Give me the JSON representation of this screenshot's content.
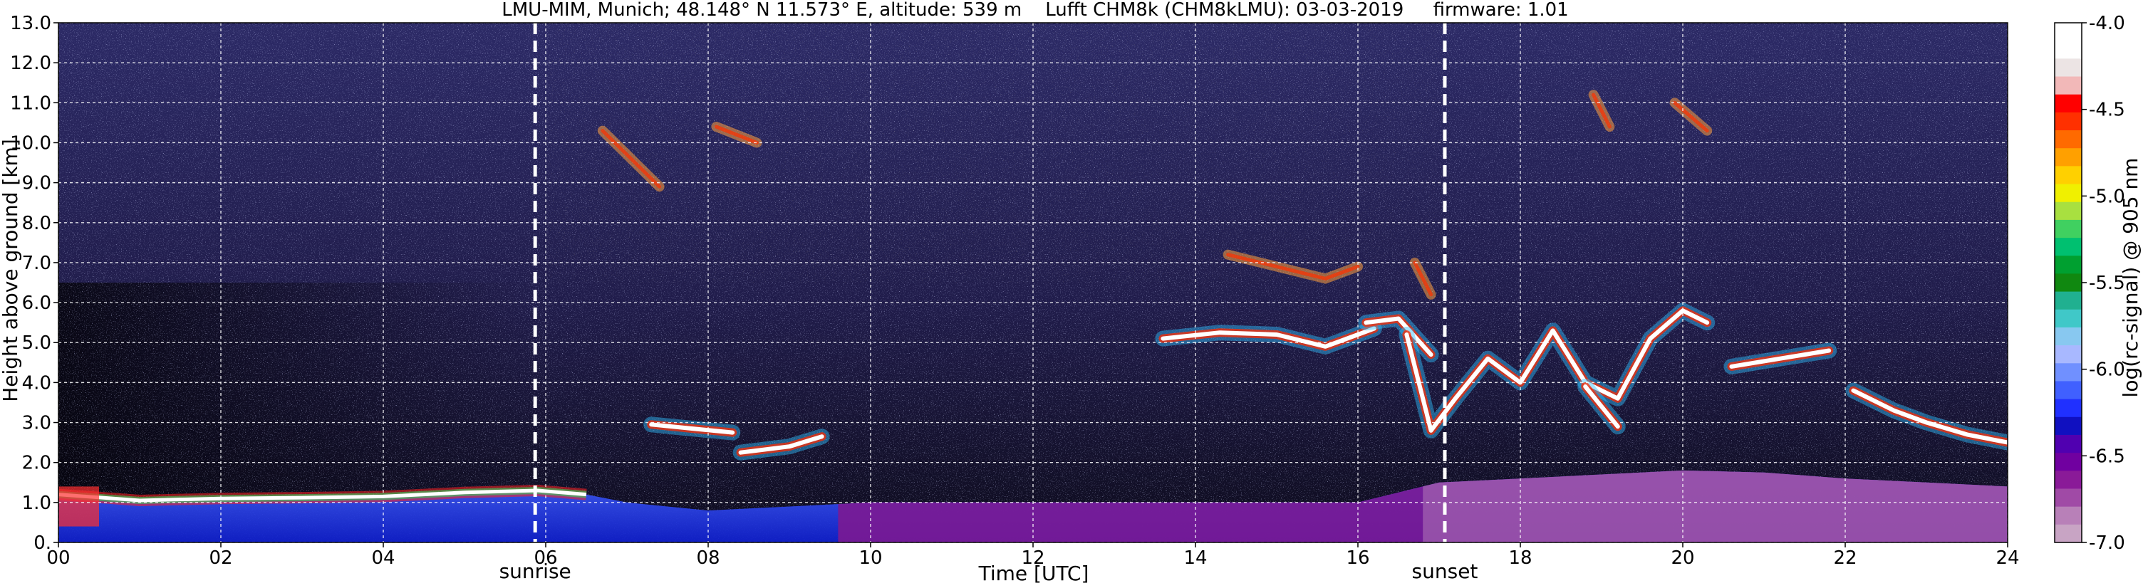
{
  "chart_data": {
    "type": "heatmap",
    "title": "LMU-MIM, Munich; 48.148° N 11.573° E, altitude: 539 m    Lufft CHM8k (CHM8kLMU): 03-03-2019     firmware: 1.01",
    "xlabel": "Time [UTC]",
    "ylabel": "Height above ground [km]",
    "xlim": [
      0,
      24
    ],
    "ylim": [
      0,
      13
    ],
    "x_ticks": [
      "00",
      "02",
      "04",
      "06",
      "08",
      "10",
      "12",
      "14",
      "16",
      "18",
      "20",
      "22",
      "24"
    ],
    "y_ticks": [
      "0.",
      "1.0",
      "2.0",
      "3.0",
      "4.0",
      "5.0",
      "6.0",
      "7.0",
      "8.0",
      "9.0",
      "10.0",
      "11.0",
      "12.0",
      "13.0"
    ],
    "grid": true,
    "markers": [
      {
        "label": "sunrise",
        "time_utc": 5.87
      },
      {
        "label": "sunset",
        "time_utc": 17.07
      }
    ],
    "colorbar": {
      "label": "log(rc-signal) @ 905 nm",
      "range": [
        -7.0,
        -4.0
      ],
      "ticks": [
        "-4.0",
        "-4.5",
        "-5.0",
        "-5.5",
        "-6.0",
        "-6.5",
        "-7.0"
      ],
      "colors_top_to_bottom": [
        "#ffffff",
        "#ffffff",
        "#ece4e4",
        "#f2b8b8",
        "#ff0000",
        "#ff3000",
        "#ff6a00",
        "#ffa000",
        "#ffd000",
        "#f0f000",
        "#a8e040",
        "#40d060",
        "#00c070",
        "#00a030",
        "#108810",
        "#20b090",
        "#40c8c8",
        "#88c8f0",
        "#a8b8ff",
        "#7090ff",
        "#4060ff",
        "#2030ff",
        "#1010c0",
        "#5000b0",
        "#7000a0",
        "#8a1a98",
        "#a04aa6",
        "#b880b8",
        "#c8a4c4"
      ]
    },
    "layers": [
      {
        "name": "boundary layer",
        "t": [
          0,
          1,
          2,
          3,
          4,
          5,
          5.9,
          6.5,
          7,
          8,
          9,
          10,
          11,
          12,
          13,
          14,
          15,
          16,
          17,
          18,
          19,
          20,
          21,
          22,
          23,
          24
        ],
        "top_km": [
          1.2,
          1.05,
          1.1,
          1.12,
          1.15,
          1.25,
          1.3,
          1.2,
          1.0,
          0.8,
          0.9,
          1.0,
          1.0,
          1.0,
          1.0,
          1.0,
          1.0,
          1.0,
          1.5,
          1.6,
          1.7,
          1.8,
          1.75,
          1.6,
          1.5,
          1.4
        ]
      },
      {
        "name": "cloud layer",
        "segments": [
          {
            "t": [
              7.3,
              7.8,
              8.3
            ],
            "h_km": [
              2.95,
              2.85,
              2.75
            ]
          },
          {
            "t": [
              8.4,
              9.0,
              9.4
            ],
            "h_km": [
              2.25,
              2.4,
              2.65
            ]
          },
          {
            "t": [
              13.6,
              14.3,
              15.0,
              15.6,
              16.2
            ],
            "h_km": [
              5.1,
              5.25,
              5.2,
              4.9,
              5.35
            ]
          },
          {
            "t": [
              16.1,
              16.5,
              16.9
            ],
            "h_km": [
              5.5,
              5.6,
              4.7
            ]
          },
          {
            "t": [
              16.6,
              16.9,
              17.2,
              17.6,
              18.0,
              18.4,
              18.8,
              19.2,
              19.6,
              20.0,
              20.3
            ],
            "h_km": [
              5.2,
              2.8,
              3.6,
              4.6,
              4.0,
              5.3,
              4.0,
              3.6,
              5.1,
              5.8,
              5.5
            ]
          },
          {
            "t": [
              20.6,
              21.2,
              21.8
            ],
            "h_km": [
              4.4,
              4.6,
              4.8
            ]
          },
          {
            "t": [
              22.1,
              22.6,
              23.0,
              23.5,
              24.0
            ],
            "h_km": [
              3.8,
              3.3,
              3.0,
              2.7,
              2.5
            ]
          },
          {
            "t": [
              18.8,
              19.2
            ],
            "h_km": [
              3.9,
              2.9
            ]
          }
        ]
      },
      {
        "name": "cirrus",
        "segments": [
          {
            "t": [
              6.7,
              7.4
            ],
            "h_km": [
              10.3,
              8.9
            ]
          },
          {
            "t": [
              8.1,
              8.6
            ],
            "h_km": [
              10.4,
              10.0
            ]
          },
          {
            "t": [
              14.4,
              15.0,
              15.6,
              16.0
            ],
            "h_km": [
              7.2,
              6.9,
              6.6,
              6.9
            ]
          },
          {
            "t": [
              16.7,
              16.9
            ],
            "h_km": [
              7.0,
              6.2
            ]
          },
          {
            "t": [
              19.9,
              20.3
            ],
            "h_km": [
              11.0,
              10.3
            ]
          },
          {
            "t": [
              18.9,
              19.1
            ],
            "h_km": [
              11.2,
              10.4
            ]
          }
        ]
      }
    ]
  }
}
